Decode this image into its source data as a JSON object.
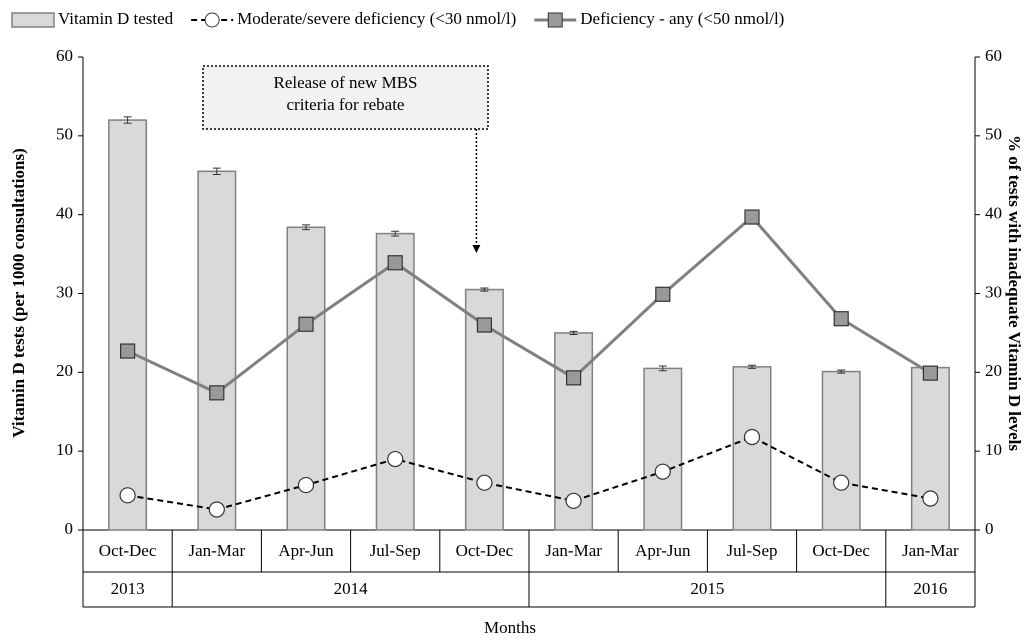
{
  "chart_data": {
    "type": "bar",
    "categories": [
      "Oct-Dec",
      "Jan-Mar",
      "Apr-Jun",
      "Jul-Sep",
      "Oct-Dec",
      "Jan-Mar",
      "Apr-Jun",
      "Jul-Sep",
      "Oct-Dec",
      "Jan-Mar"
    ],
    "years": [
      "2013",
      "2014",
      "2014",
      "2014",
      "2014",
      "2015",
      "2015",
      "2015",
      "2015",
      "2016"
    ],
    "xlabel": "Months",
    "ylabel": "Vitamin D tests (per 1000 consultations)",
    "y2label": "% of tests with inadequate Vitamin D levels",
    "ylim": [
      0,
      60
    ],
    "yticks": [
      0,
      10,
      20,
      30,
      40,
      50,
      60
    ],
    "y2lim": [
      0,
      60
    ],
    "y2ticks": [
      0,
      10,
      20,
      30,
      40,
      50,
      60
    ],
    "annotation": {
      "lines": [
        "Release of new MBS",
        "criteria for rebate"
      ],
      "category": 4
    },
    "series": [
      {
        "name": "Vitamin D tested",
        "type": "bar",
        "color": "#d9d9d9",
        "values": [
          52.0,
          45.5,
          38.4,
          37.6,
          30.5,
          25.0,
          20.5,
          20.7,
          20.1,
          20.6
        ],
        "errors": [
          0.4,
          0.4,
          0.3,
          0.3,
          0.2,
          0.2,
          0.3,
          0.2,
          0.2,
          0.1
        ]
      },
      {
        "name": "Moderate/severe deficiency (<30 nmol/l)",
        "type": "line",
        "axis": "y2",
        "color": "#000000",
        "dashed": true,
        "marker": "circle",
        "values": [
          4.4,
          2.6,
          5.7,
          9.0,
          6.0,
          3.7,
          7.4,
          11.8,
          6.0,
          4.0
        ]
      },
      {
        "name": "Deficiency - any (<50 nmol/l)",
        "type": "line",
        "axis": "y2",
        "color": "#808080",
        "dashed": false,
        "marker": "square",
        "values": [
          22.7,
          17.4,
          26.1,
          33.9,
          26.0,
          19.3,
          29.9,
          39.7,
          26.8,
          19.9
        ]
      }
    ]
  }
}
